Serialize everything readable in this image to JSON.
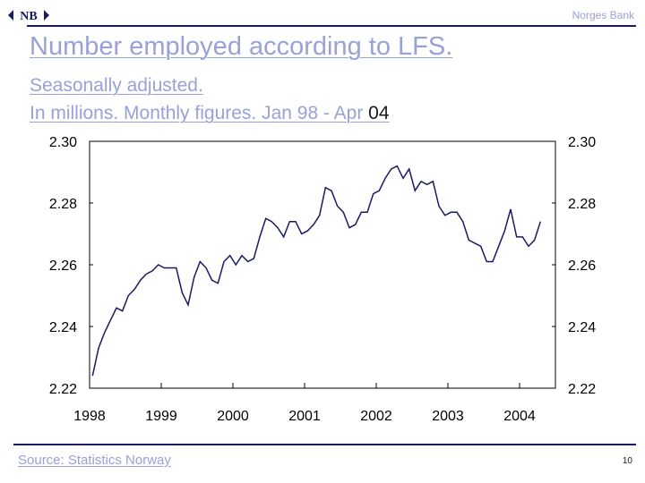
{
  "header": {
    "logo_text": "NB",
    "bank_name": "Norges Bank",
    "title": "Number employed according to LFS.",
    "subtitle_line1": "Seasonally adjusted.",
    "subtitle_line2_a": "In millions. Monthly figures. Jan 98 - Apr",
    "subtitle_line2_b": " 04"
  },
  "footer": {
    "source": "Source: Statistics Norway",
    "page_number": "10"
  },
  "colors": {
    "line": "#1a1a66",
    "accent": "#9aa0d8"
  },
  "chart_data": {
    "type": "line",
    "title": "Number employed according to LFS.",
    "ylabel": "",
    "xlabel": "",
    "ylim": [
      2.22,
      2.3
    ],
    "xlim": [
      1998.0,
      2004.5
    ],
    "yticks": [
      "2.22",
      "2.24",
      "2.26",
      "2.28",
      "2.30"
    ],
    "ytick_values": [
      2.22,
      2.24,
      2.26,
      2.28,
      2.3
    ],
    "xticks": [
      "1998",
      "1999",
      "2000",
      "2001",
      "2002",
      "2003",
      "2004"
    ],
    "grid": false,
    "legend": "none",
    "series": [
      {
        "x": [
          "1998-01",
          "1998-02",
          "1998-03",
          "1998-04",
          "1998-05",
          "1998-06",
          "1998-07",
          "1998-08",
          "1998-09",
          "1998-10",
          "1998-11",
          "1998-12",
          "1999-01",
          "1999-02",
          "1999-03",
          "1999-04",
          "1999-05",
          "1999-06",
          "1999-07",
          "1999-08",
          "1999-09",
          "1999-10",
          "1999-11",
          "1999-12",
          "2000-01",
          "2000-02",
          "2000-03",
          "2000-04",
          "2000-05",
          "2000-06",
          "2000-07",
          "2000-08",
          "2000-09",
          "2000-10",
          "2000-11",
          "2000-12",
          "2001-01",
          "2001-02",
          "2001-03",
          "2001-04",
          "2001-05",
          "2001-06",
          "2001-07",
          "2001-08",
          "2001-09",
          "2001-10",
          "2001-11",
          "2001-12",
          "2002-01",
          "2002-02",
          "2002-03",
          "2002-04",
          "2002-05",
          "2002-06",
          "2002-07",
          "2002-08",
          "2002-09",
          "2002-10",
          "2002-11",
          "2002-12",
          "2003-01",
          "2003-02",
          "2003-03",
          "2003-04",
          "2003-05",
          "2003-06",
          "2003-07",
          "2003-08",
          "2003-09",
          "2003-10",
          "2003-11",
          "2003-12",
          "2004-01",
          "2004-02",
          "2004-03",
          "2004-04"
        ],
        "values": [
          2.224,
          2.233,
          2.238,
          2.242,
          2.246,
          2.245,
          2.25,
          2.252,
          2.255,
          2.257,
          2.258,
          2.26,
          2.259,
          2.259,
          2.259,
          2.251,
          2.247,
          2.256,
          2.261,
          2.259,
          2.255,
          2.254,
          2.261,
          2.263,
          2.26,
          2.263,
          2.261,
          2.262,
          2.269,
          2.275,
          2.274,
          2.272,
          2.269,
          2.274,
          2.274,
          2.27,
          2.271,
          2.273,
          2.276,
          2.285,
          2.284,
          2.279,
          2.277,
          2.272,
          2.273,
          2.277,
          2.277,
          2.283,
          2.284,
          2.288,
          2.291,
          2.292,
          2.288,
          2.291,
          2.284,
          2.287,
          2.286,
          2.287,
          2.279,
          2.276,
          2.277,
          2.277,
          2.274,
          2.268,
          2.267,
          2.266,
          2.261,
          2.261,
          2.266,
          2.271,
          2.278,
          2.269,
          2.269,
          2.266,
          2.268,
          2.274
        ]
      }
    ]
  }
}
